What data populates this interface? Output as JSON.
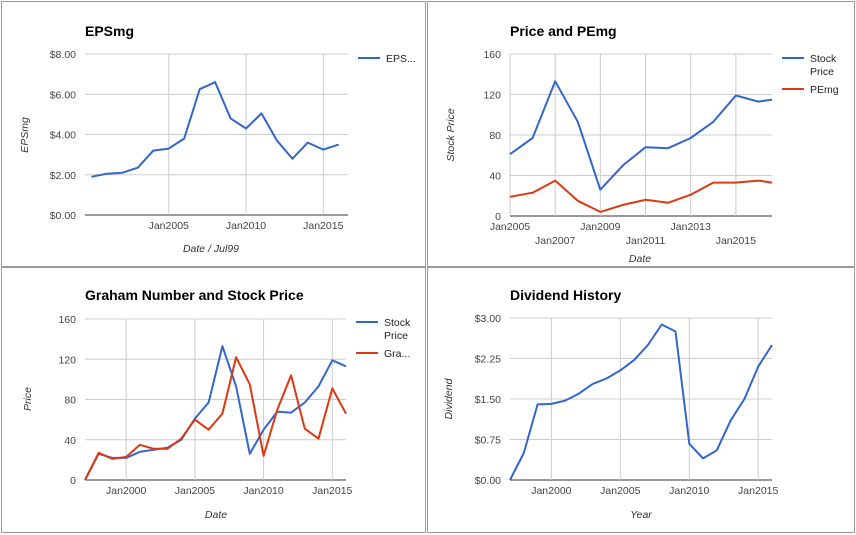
{
  "chart_data": [
    {
      "type": "line",
      "title": "EPSmg",
      "xlabel": "Date / Jul99",
      "ylabel": "EPSmg",
      "ylim": [
        0,
        8
      ],
      "yticks": [
        "$0.00",
        "$2.00",
        "$4.00",
        "$6.00",
        "$8.00"
      ],
      "xticks": [
        {
          "label": "Jan2005",
          "value": 2005
        },
        {
          "label": "Jan2010",
          "value": 2010
        },
        {
          "label": "Jan2015",
          "value": 2015
        }
      ],
      "x": [
        2000,
        2001,
        2002,
        2003,
        2004,
        2005,
        2006,
        2007,
        2008,
        2009,
        2010,
        2011,
        2012,
        2013,
        2014,
        2015,
        2016
      ],
      "series": [
        {
          "name": "EPS...",
          "color": "#3366cc",
          "values": [
            1.9,
            2.05,
            2.1,
            2.35,
            3.2,
            3.3,
            3.8,
            6.25,
            6.6,
            4.8,
            4.3,
            5.05,
            3.7,
            2.8,
            3.6,
            3.25,
            3.5
          ]
        }
      ],
      "legend": "right",
      "grid": true
    },
    {
      "type": "line",
      "title": "Price and PEmg",
      "xlabel": "Date",
      "ylabel": "Stock Price",
      "ylim": [
        0,
        160
      ],
      "yticks": [
        "0",
        "40",
        "80",
        "120",
        "160"
      ],
      "xticks": [
        {
          "label": "Jan2005",
          "value": 2005,
          "row": 0
        },
        {
          "label": "Jan2007",
          "value": 2007,
          "row": 1
        },
        {
          "label": "Jan2009",
          "value": 2009,
          "row": 0
        },
        {
          "label": "Jan2011",
          "value": 2011,
          "row": 1
        },
        {
          "label": "Jan2013",
          "value": 2013,
          "row": 0
        },
        {
          "label": "Jan2015",
          "value": 2015,
          "row": 1
        }
      ],
      "x": [
        2005,
        2006,
        2007,
        2008,
        2009,
        2010,
        2011,
        2012,
        2013,
        2014,
        2015,
        2016,
        2016.6
      ],
      "series": [
        {
          "name": "Stock Price",
          "color": "#3366cc",
          "values": [
            61,
            77,
            133,
            93,
            26,
            50,
            68,
            67,
            77,
            93,
            119,
            113,
            115
          ]
        },
        {
          "name": "PEmg",
          "color": "#dc3912",
          "values": [
            19,
            23,
            35,
            15,
            4,
            11,
            16,
            13,
            21,
            33,
            33,
            35,
            33
          ]
        }
      ],
      "legend": "right",
      "grid": true
    },
    {
      "type": "line",
      "title": "Graham Number and Stock Price",
      "xlabel": "Date",
      "ylabel": "Price",
      "ylim": [
        0,
        160
      ],
      "yticks": [
        "0",
        "40",
        "80",
        "120",
        "160"
      ],
      "xticks": [
        {
          "label": "Jan2000",
          "value": 2000
        },
        {
          "label": "Jan2005",
          "value": 2005
        },
        {
          "label": "Jan2010",
          "value": 2010
        },
        {
          "label": "Jan2015",
          "value": 2015
        }
      ],
      "x": [
        1997,
        1998,
        1999,
        2000,
        2001,
        2002,
        2003,
        2004,
        2005,
        2006,
        2007,
        2008,
        2009,
        2010,
        2011,
        2012,
        2013,
        2014,
        2015,
        2016
      ],
      "series": [
        {
          "name": "Stock Price",
          "color": "#3366cc",
          "values": [
            0,
            26,
            22,
            22,
            28,
            30,
            32,
            40,
            61,
            77,
            133,
            93,
            26,
            50,
            68,
            67,
            77,
            93,
            119,
            113
          ]
        },
        {
          "name": "Gra...",
          "color": "#dc3912",
          "values": [
            0,
            27,
            21,
            23,
            35,
            31,
            31,
            41,
            60,
            50,
            66,
            122,
            95,
            24,
            70,
            104,
            51,
            41,
            91,
            66
          ]
        }
      ],
      "legend": "right",
      "grid": true
    },
    {
      "type": "line",
      "title": "Dividend History",
      "xlabel": "Year",
      "ylabel": "Dividend",
      "ylim": [
        0,
        3
      ],
      "yticks": [
        "$0.00",
        "$0.75",
        "$1.50",
        "$2.25",
        "$3.00"
      ],
      "xticks": [
        {
          "label": "Jan2000",
          "value": 2000
        },
        {
          "label": "Jan2005",
          "value": 2005
        },
        {
          "label": "Jan2010",
          "value": 2010
        },
        {
          "label": "Jan2015",
          "value": 2015
        }
      ],
      "x": [
        1997,
        1998,
        1999,
        2000,
        2001,
        2002,
        2003,
        2004,
        2005,
        2006,
        2007,
        2008,
        2009,
        2010,
        2011,
        2012,
        2013,
        2014,
        2015,
        2016
      ],
      "series": [
        {
          "name": "Dividend",
          "color": "#3366cc",
          "values": [
            0,
            0.5,
            1.4,
            1.41,
            1.47,
            1.6,
            1.78,
            1.88,
            2.03,
            2.22,
            2.5,
            2.88,
            2.75,
            0.67,
            0.4,
            0.55,
            1.1,
            1.5,
            2.1,
            2.5
          ]
        }
      ],
      "legend": "none",
      "grid": true
    }
  ]
}
